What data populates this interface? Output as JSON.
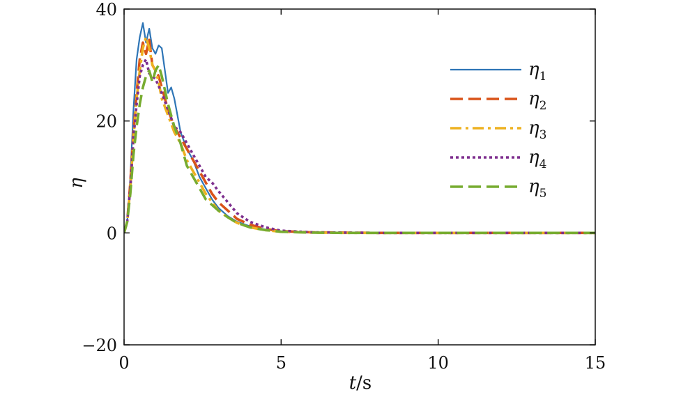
{
  "chart_data": {
    "type": "line",
    "title": "",
    "xlabel": {
      "var": "t",
      "unit": "/s"
    },
    "ylabel": "η",
    "xlim": [
      0,
      15
    ],
    "ylim": [
      -20,
      40
    ],
    "xticks": [
      0,
      5,
      10,
      15
    ],
    "yticks": [
      -20,
      0,
      20,
      40
    ],
    "xtick_labels": [
      "0",
      "5",
      "10",
      "15"
    ],
    "ytick_labels": [
      "−20",
      "0",
      "20",
      "40"
    ],
    "grid": false,
    "legend_position": "top-right",
    "series": [
      {
        "name": "η",
        "sub": "1",
        "color": "#2e75b6",
        "dash": "solid",
        "x": [
          0,
          0.1,
          0.2,
          0.3,
          0.4,
          0.5,
          0.6,
          0.7,
          0.8,
          0.9,
          1.0,
          1.1,
          1.2,
          1.3,
          1.4,
          1.5,
          1.6,
          1.7,
          1.8,
          2.0,
          2.2,
          2.4,
          2.6,
          2.8,
          3.0,
          3.3,
          3.6,
          4.0,
          4.5,
          5.0,
          6.0,
          7.0,
          8.0,
          10.0,
          12.0,
          15.0
        ],
        "y": [
          0,
          2,
          10,
          22,
          31,
          35,
          37.5,
          34,
          36.5,
          33,
          32,
          33.5,
          33,
          29,
          25,
          26,
          24,
          21,
          18,
          15,
          13,
          10,
          8,
          6,
          4.5,
          3,
          2,
          1.2,
          0.6,
          0.3,
          0.1,
          0.05,
          0,
          0,
          0,
          0
        ]
      },
      {
        "name": "η",
        "sub": "2",
        "color": "#d95319",
        "dash": "dash",
        "x": [
          0,
          0.1,
          0.2,
          0.3,
          0.4,
          0.5,
          0.6,
          0.7,
          0.8,
          0.9,
          1.0,
          1.1,
          1.2,
          1.4,
          1.6,
          1.8,
          2.0,
          2.2,
          2.4,
          2.6,
          2.8,
          3.0,
          3.3,
          3.6,
          4.0,
          4.5,
          5.0,
          6.0,
          7.0,
          8.0,
          10.0,
          12.0,
          15.0
        ],
        "y": [
          0,
          2,
          9,
          18,
          25,
          31,
          34,
          32,
          34.5,
          30,
          29,
          28,
          26,
          22,
          19,
          17,
          15,
          13,
          11,
          9,
          7,
          5.5,
          4,
          2.5,
          1.5,
          0.7,
          0.3,
          0.1,
          0.05,
          0,
          0,
          0,
          0
        ]
      },
      {
        "name": "η",
        "sub": "3",
        "color": "#edb120",
        "dash": "dashdot",
        "x": [
          0,
          0.1,
          0.2,
          0.3,
          0.4,
          0.5,
          0.6,
          0.7,
          0.8,
          0.9,
          1.0,
          1.1,
          1.2,
          1.4,
          1.6,
          1.8,
          2.0,
          2.2,
          2.4,
          2.6,
          2.8,
          3.0,
          3.3,
          3.6,
          4.0,
          4.5,
          5.0,
          6.0,
          7.0,
          8.0,
          10.0,
          12.0,
          15.0
        ],
        "y": [
          0,
          2,
          8,
          17,
          24,
          29,
          33,
          35,
          33,
          30,
          29,
          27,
          24,
          21,
          18,
          16,
          13,
          11,
          9,
          7,
          5.5,
          4,
          2.8,
          1.8,
          1.0,
          0.5,
          0.2,
          0.05,
          0,
          0,
          0,
          0,
          0
        ]
      },
      {
        "name": "η",
        "sub": "4",
        "color": "#7e2f8e",
        "dash": "dot",
        "x": [
          0,
          0.1,
          0.2,
          0.3,
          0.4,
          0.5,
          0.6,
          0.7,
          0.8,
          0.9,
          1.0,
          1.2,
          1.4,
          1.6,
          1.8,
          2.0,
          2.2,
          2.4,
          2.6,
          2.8,
          3.0,
          3.3,
          3.6,
          4.0,
          4.5,
          5.0,
          6.0,
          7.0,
          8.0,
          10.0,
          12.0,
          15.0
        ],
        "y": [
          0,
          2,
          8,
          17,
          23,
          28,
          30,
          31,
          28.5,
          28,
          27.5,
          25,
          22,
          19,
          18,
          16,
          14,
          12,
          10,
          9,
          7.5,
          5.5,
          3.5,
          2,
          1,
          0.4,
          0.1,
          0.05,
          0,
          0,
          0,
          0
        ]
      },
      {
        "name": "η",
        "sub": "5",
        "color": "#77ac30",
        "dash": "dash",
        "x": [
          0,
          0.1,
          0.2,
          0.3,
          0.4,
          0.5,
          0.6,
          0.7,
          0.8,
          0.9,
          1.0,
          1.1,
          1.2,
          1.4,
          1.6,
          1.8,
          2.0,
          2.2,
          2.4,
          2.6,
          2.8,
          3.0,
          3.3,
          3.6,
          4.0,
          4.5,
          5.0,
          6.0,
          7.0,
          8.0,
          10.0,
          12.0,
          15.0
        ],
        "y": [
          0,
          2,
          7,
          14,
          19,
          23,
          26,
          28,
          29,
          27,
          29,
          30,
          28,
          23,
          19,
          16,
          12,
          10,
          8,
          6,
          5,
          4,
          2.8,
          1.8,
          1.0,
          0.5,
          0.2,
          0.05,
          0,
          0,
          0,
          0,
          0
        ]
      }
    ]
  }
}
